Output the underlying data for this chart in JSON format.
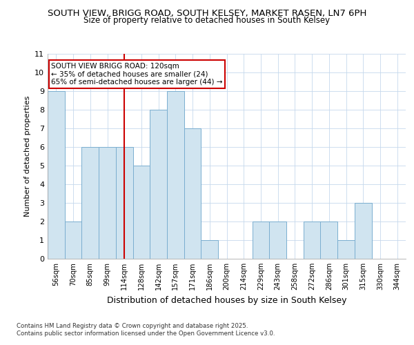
{
  "title_line1": "SOUTH VIEW, BRIGG ROAD, SOUTH KELSEY, MARKET RASEN, LN7 6PH",
  "title_line2": "Size of property relative to detached houses in South Kelsey",
  "xlabel": "Distribution of detached houses by size in South Kelsey",
  "ylabel": "Number of detached properties",
  "categories": [
    "56sqm",
    "70sqm",
    "85sqm",
    "99sqm",
    "114sqm",
    "128sqm",
    "142sqm",
    "157sqm",
    "171sqm",
    "186sqm",
    "200sqm",
    "214sqm",
    "229sqm",
    "243sqm",
    "258sqm",
    "272sqm",
    "286sqm",
    "301sqm",
    "315sqm",
    "330sqm",
    "344sqm"
  ],
  "values": [
    9,
    2,
    6,
    6,
    6,
    5,
    8,
    9,
    7,
    1,
    0,
    0,
    2,
    2,
    0,
    2,
    2,
    1,
    3,
    0,
    0
  ],
  "bar_color": "#d0e4f0",
  "bar_edge_color": "#7aaed0",
  "vline_index": 4,
  "vline_color": "#cc0000",
  "annotation_text": "SOUTH VIEW BRIGG ROAD: 120sqm\n← 35% of detached houses are smaller (24)\n65% of semi-detached houses are larger (44) →",
  "annotation_box_facecolor": "#ffffff",
  "annotation_box_edgecolor": "#cc0000",
  "ylim": [
    0,
    11
  ],
  "yticks": [
    0,
    1,
    2,
    3,
    4,
    5,
    6,
    7,
    8,
    9,
    10,
    11
  ],
  "background_color": "#ffffff",
  "plot_bg_color": "#ffffff",
  "grid_color": "#c5d8ec",
  "footer_text": "Contains HM Land Registry data © Crown copyright and database right 2025.\nContains public sector information licensed under the Open Government Licence v3.0."
}
